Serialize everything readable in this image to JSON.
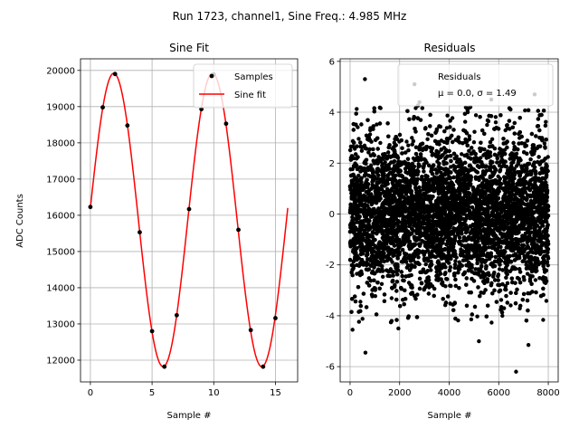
{
  "suptitle": "Run 1723, channel1, Sine Freq.: 4.985 MHz",
  "colors": {
    "samples": "#000000",
    "fit": "#ff0000",
    "residuals": "#000000",
    "grid": "#b0b0b0"
  },
  "chart_data": [
    {
      "type": "line",
      "title": "Sine Fit",
      "xlabel": "Sample #",
      "ylabel": "ADC Counts",
      "xlim": [
        -0.8,
        16.8
      ],
      "ylim": [
        11400,
        20320
      ],
      "xticks": [
        0,
        5,
        10,
        15
      ],
      "yticks": [
        12000,
        13000,
        14000,
        15000,
        16000,
        17000,
        18000,
        19000,
        20000
      ],
      "grid": true,
      "legend_position": "upper right",
      "legend": [
        "Samples",
        "Sine fit"
      ],
      "series": [
        {
          "name": "Samples",
          "kind": "scatter",
          "x": [
            0,
            1,
            2,
            3,
            4,
            5,
            6,
            7,
            8,
            9,
            10,
            11,
            12,
            13,
            14,
            15
          ],
          "y": [
            16230,
            18980,
            19900,
            18480,
            15530,
            12800,
            11820,
            13240,
            16170,
            18930,
            19890,
            18530,
            15600,
            12830,
            11820,
            13160
          ]
        },
        {
          "name": "Sine fit",
          "kind": "line",
          "model": {
            "offset": 15870,
            "amplitude": 4050,
            "period": 8.0,
            "phase_deg": 4.7
          },
          "x_range": [
            0,
            16
          ]
        }
      ]
    },
    {
      "type": "scatter",
      "title": "Residuals",
      "xlabel": "Sample #",
      "ylabel": "",
      "xlim": [
        -400,
        8400
      ],
      "ylim": [
        -6.6,
        6.1
      ],
      "xticks": [
        0,
        2000,
        4000,
        6000,
        8000
      ],
      "yticks": [
        -6,
        -4,
        -2,
        0,
        2,
        4,
        6
      ],
      "grid": true,
      "legend_position": "upper right",
      "legend": [
        "Residuals",
        "μ = 0.0, σ = 1.49"
      ],
      "series": [
        {
          "name": "Residuals",
          "n_points": 8000,
          "mu": 0.0,
          "sigma": 1.49,
          "x_range": [
            0,
            8000
          ],
          "outliers": [
            {
              "x": 620,
              "y": -5.45
            },
            {
              "x": 6700,
              "y": -6.2
            },
            {
              "x": 600,
              "y": 5.3
            },
            {
              "x": 2600,
              "y": 5.1
            },
            {
              "x": 100,
              "y": -4.55
            },
            {
              "x": 1950,
              "y": -4.5
            },
            {
              "x": 5200,
              "y": -5.0
            },
            {
              "x": 7200,
              "y": -5.15
            },
            {
              "x": 7450,
              "y": 4.7
            },
            {
              "x": 5700,
              "y": 4.5
            },
            {
              "x": 2800,
              "y": 4.4
            }
          ]
        }
      ]
    }
  ]
}
